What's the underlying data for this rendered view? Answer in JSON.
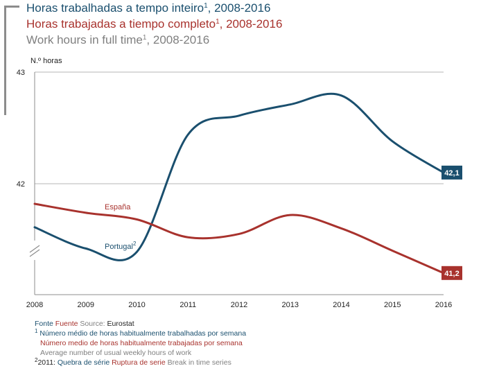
{
  "header": {
    "title_pt": "Horas trabalhadas a tempo inteiro",
    "title_es": "Horas trabajadas a tiempo completo",
    "title_en": "Work hours in full time",
    "sup": "1",
    "years": ", 2008-2016"
  },
  "chart_data": {
    "type": "line",
    "ylabel": "N.º horas",
    "ylim": [
      41.0,
      43.0
    ],
    "yticks": [
      "43",
      "42"
    ],
    "x": [
      "2008",
      "2009",
      "2010",
      "2011",
      "2012",
      "2013",
      "2014",
      "2015",
      "2016"
    ],
    "axis_break": true,
    "series": [
      {
        "name": "Portugal",
        "label": "Portugal",
        "label_sup": "2",
        "color": "#1a4f6e",
        "values": [
          41.61,
          41.42,
          41.39,
          42.44,
          42.61,
          42.71,
          42.79,
          42.38,
          42.1
        ],
        "end_label": "42,1"
      },
      {
        "name": "España",
        "label": "España",
        "color": "#a8322d",
        "values": [
          41.82,
          41.74,
          41.68,
          41.52,
          41.55,
          41.72,
          41.6,
          41.4,
          41.2
        ],
        "end_label": "41,2"
      }
    ]
  },
  "footer": {
    "source_pt": "Fonte",
    "source_es": "Fuente",
    "source_en": "Source:",
    "source_name": "Eurostat",
    "note1_sup": "1",
    "note1_pt": "Número médio de horas habitualmente trabalhadas por semana",
    "note1_es": "Número medio de horas habitualmente trabajadas por semana",
    "note1_en": "Average number of usual weekly hours of work",
    "note2_sup": "2",
    "note2_year": "2011:",
    "note2_pt": "Quebra de série",
    "note2_es": "Ruptura de serie",
    "note2_en": "Break in time series"
  }
}
